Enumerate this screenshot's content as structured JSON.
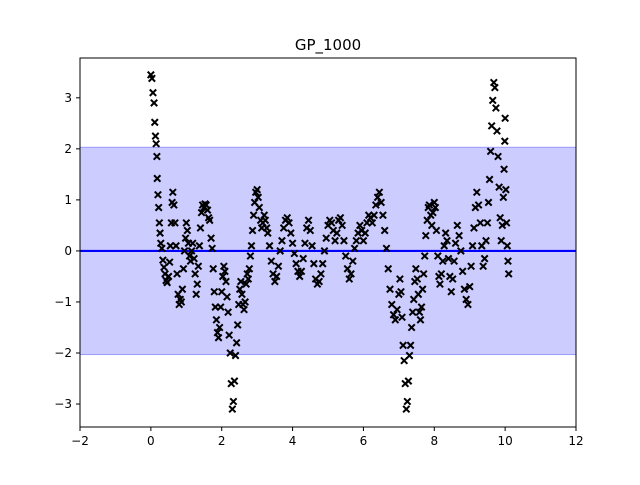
{
  "chart_data": {
    "type": "scatter",
    "title": "GP_1000",
    "xlabel": "",
    "ylabel": "",
    "xlim": [
      -2,
      12
    ],
    "ylim": [
      -3.45,
      3.78
    ],
    "x_ticks": [
      -2,
      0,
      2,
      4,
      6,
      8,
      10,
      12
    ],
    "y_ticks": [
      -3,
      -2,
      -1,
      0,
      1,
      2,
      3
    ],
    "grid": false,
    "legend": null,
    "mean_line": {
      "y": 0,
      "color": "#0000ff"
    },
    "confidence_band": {
      "y_low": -2.03,
      "y_high": 2.03,
      "color": "#ccccff"
    },
    "marker": "x",
    "marker_color": "#000000",
    "points": [
      [
        0.0,
        3.45
      ],
      [
        0.03,
        3.38
      ],
      [
        0.06,
        3.1
      ],
      [
        0.09,
        2.9
      ],
      [
        0.11,
        2.52
      ],
      [
        0.13,
        2.25
      ],
      [
        0.15,
        2.1
      ],
      [
        0.17,
        1.85
      ],
      [
        0.18,
        1.42
      ],
      [
        0.2,
        1.1
      ],
      [
        0.22,
        0.85
      ],
      [
        0.24,
        0.55
      ],
      [
        0.26,
        0.35
      ],
      [
        0.28,
        0.15
      ],
      [
        0.31,
        0.05
      ],
      [
        0.34,
        -0.18
      ],
      [
        0.37,
        -0.32
      ],
      [
        0.4,
        -0.45
      ],
      [
        0.43,
        -0.58
      ],
      [
        0.46,
        -0.62
      ],
      [
        0.5,
        -0.5
      ],
      [
        0.53,
        -0.22
      ],
      [
        0.55,
        0.1
      ],
      [
        0.58,
        0.55
      ],
      [
        0.6,
        0.95
      ],
      [
        0.62,
        1.15
      ],
      [
        0.65,
        0.9
      ],
      [
        0.68,
        0.55
      ],
      [
        0.71,
        0.1
      ],
      [
        0.74,
        -0.45
      ],
      [
        0.77,
        -0.85
      ],
      [
        0.8,
        -1.05
      ],
      [
        0.83,
        -0.95
      ],
      [
        0.86,
        -1.0
      ],
      [
        0.89,
        -0.75
      ],
      [
        0.92,
        -0.35
      ],
      [
        0.95,
        0.0
      ],
      [
        0.98,
        0.25
      ],
      [
        1.0,
        0.55
      ],
      [
        1.03,
        0.4
      ],
      [
        1.06,
        0.15
      ],
      [
        1.09,
        -0.1
      ],
      [
        1.12,
        -0.2
      ],
      [
        1.15,
        0.0
      ],
      [
        1.18,
        0.15
      ],
      [
        1.22,
        -0.15
      ],
      [
        1.25,
        -0.45
      ],
      [
        1.28,
        -0.85
      ],
      [
        1.31,
        -0.65
      ],
      [
        1.34,
        -0.3
      ],
      [
        1.37,
        0.1
      ],
      [
        1.4,
        0.45
      ],
      [
        1.43,
        0.75
      ],
      [
        1.46,
        0.9
      ],
      [
        1.5,
        0.85
      ],
      [
        1.53,
        0.92
      ],
      [
        1.56,
        0.9
      ],
      [
        1.6,
        0.8
      ],
      [
        1.63,
        0.65
      ],
      [
        1.66,
        0.6
      ],
      [
        1.7,
        0.25
      ],
      [
        1.73,
        0.05
      ],
      [
        1.76,
        -0.35
      ],
      [
        1.79,
        -0.8
      ],
      [
        1.82,
        -1.1
      ],
      [
        1.85,
        -1.35
      ],
      [
        1.88,
        -1.6
      ],
      [
        1.91,
        -1.7
      ],
      [
        1.94,
        -1.5
      ],
      [
        1.97,
        -1.1
      ],
      [
        2.0,
        -0.8
      ],
      [
        2.03,
        -0.5
      ],
      [
        2.06,
        -0.3
      ],
      [
        2.09,
        -0.4
      ],
      [
        2.12,
        -0.6
      ],
      [
        2.15,
        -0.9
      ],
      [
        2.18,
        -1.2
      ],
      [
        2.21,
        -1.65
      ],
      [
        2.24,
        -2.0
      ],
      [
        2.27,
        -2.6
      ],
      [
        2.3,
        -3.1
      ],
      [
        2.33,
        -2.95
      ],
      [
        2.36,
        -2.55
      ],
      [
        2.39,
        -2.05
      ],
      [
        2.42,
        -1.8
      ],
      [
        2.45,
        -1.45
      ],
      [
        2.48,
        -1.05
      ],
      [
        2.51,
        -0.75
      ],
      [
        2.54,
        -0.6
      ],
      [
        2.57,
        -0.85
      ],
      [
        2.6,
        -1.05
      ],
      [
        2.63,
        -1.15
      ],
      [
        2.66,
        -1.0
      ],
      [
        2.69,
        -0.65
      ],
      [
        2.72,
        -0.45
      ],
      [
        2.75,
        -0.55
      ],
      [
        2.78,
        -0.35
      ],
      [
        2.81,
        -0.1
      ],
      [
        2.84,
        0.1
      ],
      [
        2.87,
        0.4
      ],
      [
        2.9,
        0.7
      ],
      [
        2.93,
        0.95
      ],
      [
        2.96,
        1.15
      ],
      [
        3.0,
        1.2
      ],
      [
        3.03,
        1.05
      ],
      [
        3.06,
        0.85
      ],
      [
        3.1,
        0.6
      ],
      [
        3.13,
        0.45
      ],
      [
        3.16,
        0.55
      ],
      [
        3.2,
        0.7
      ],
      [
        3.23,
        0.6
      ],
      [
        3.27,
        0.45
      ],
      [
        3.3,
        0.35
      ],
      [
        3.35,
        0.1
      ],
      [
        3.4,
        -0.2
      ],
      [
        3.45,
        -0.45
      ],
      [
        3.5,
        -0.6
      ],
      [
        3.55,
        -0.5
      ],
      [
        3.6,
        -0.3
      ],
      [
        3.65,
        0.0
      ],
      [
        3.7,
        0.2
      ],
      [
        3.75,
        0.45
      ],
      [
        3.8,
        0.6
      ],
      [
        3.85,
        0.65
      ],
      [
        3.9,
        0.55
      ],
      [
        3.95,
        0.35
      ],
      [
        4.0,
        0.15
      ],
      [
        4.05,
        -0.05
      ],
      [
        4.1,
        -0.25
      ],
      [
        4.15,
        -0.4
      ],
      [
        4.2,
        -0.5
      ],
      [
        4.25,
        -0.4
      ],
      [
        4.3,
        -0.15
      ],
      [
        4.35,
        0.15
      ],
      [
        4.4,
        0.45
      ],
      [
        4.45,
        0.6
      ],
      [
        4.5,
        0.4
      ],
      [
        4.55,
        0.1
      ],
      [
        4.6,
        -0.25
      ],
      [
        4.65,
        -0.55
      ],
      [
        4.7,
        -0.65
      ],
      [
        4.75,
        -0.6
      ],
      [
        4.8,
        -0.45
      ],
      [
        4.85,
        -0.25
      ],
      [
        4.9,
        0.0
      ],
      [
        4.95,
        0.25
      ],
      [
        5.0,
        0.5
      ],
      [
        5.05,
        0.6
      ],
      [
        5.1,
        0.55
      ],
      [
        5.15,
        0.4
      ],
      [
        5.2,
        0.2
      ],
      [
        5.25,
        0.35
      ],
      [
        5.3,
        0.6
      ],
      [
        5.35,
        0.65
      ],
      [
        5.4,
        0.5
      ],
      [
        5.45,
        0.2
      ],
      [
        5.5,
        -0.1
      ],
      [
        5.55,
        -0.35
      ],
      [
        5.6,
        -0.55
      ],
      [
        5.65,
        -0.45
      ],
      [
        5.7,
        -0.2
      ],
      [
        5.75,
        0.05
      ],
      [
        5.8,
        0.2
      ],
      [
        5.85,
        0.35
      ],
      [
        5.9,
        0.5
      ],
      [
        5.95,
        0.4
      ],
      [
        6.0,
        0.2
      ],
      [
        6.05,
        0.35
      ],
      [
        6.1,
        0.55
      ],
      [
        6.15,
        0.7
      ],
      [
        6.2,
        0.65
      ],
      [
        6.25,
        0.55
      ],
      [
        6.3,
        0.7
      ],
      [
        6.35,
        0.9
      ],
      [
        6.4,
        1.05
      ],
      [
        6.45,
        1.15
      ],
      [
        6.5,
        0.95
      ],
      [
        6.55,
        0.7
      ],
      [
        6.6,
        0.4
      ],
      [
        6.65,
        0.05
      ],
      [
        6.7,
        -0.35
      ],
      [
        6.75,
        -0.75
      ],
      [
        6.8,
        -1.05
      ],
      [
        6.85,
        -1.25
      ],
      [
        6.9,
        -1.35
      ],
      [
        6.95,
        -1.15
      ],
      [
        7.0,
        -0.85
      ],
      [
        7.03,
        -0.55
      ],
      [
        7.06,
        -0.8
      ],
      [
        7.09,
        -1.3
      ],
      [
        7.12,
        -1.85
      ],
      [
        7.15,
        -2.15
      ],
      [
        7.18,
        -2.6
      ],
      [
        7.21,
        -3.1
      ],
      [
        7.24,
        -2.95
      ],
      [
        7.27,
        -2.55
      ],
      [
        7.3,
        -2.05
      ],
      [
        7.33,
        -1.85
      ],
      [
        7.36,
        -1.5
      ],
      [
        7.39,
        -1.2
      ],
      [
        7.42,
        -0.95
      ],
      [
        7.45,
        -0.6
      ],
      [
        7.48,
        -0.35
      ],
      [
        7.52,
        -0.55
      ],
      [
        7.55,
        -0.85
      ],
      [
        7.58,
        -1.2
      ],
      [
        7.61,
        -1.35
      ],
      [
        7.64,
        -1.1
      ],
      [
        7.67,
        -0.75
      ],
      [
        7.7,
        -0.45
      ],
      [
        7.73,
        -0.1
      ],
      [
        7.76,
        0.3
      ],
      [
        7.8,
        0.6
      ],
      [
        7.83,
        0.85
      ],
      [
        7.86,
        0.9
      ],
      [
        7.9,
        0.7
      ],
      [
        7.93,
        0.5
      ],
      [
        7.96,
        0.75
      ],
      [
        8.0,
        0.95
      ],
      [
        8.03,
        0.85
      ],
      [
        8.06,
        0.4
      ],
      [
        8.1,
        -0.1
      ],
      [
        8.13,
        -0.5
      ],
      [
        8.16,
        -0.65
      ],
      [
        8.2,
        -0.45
      ],
      [
        8.24,
        -0.2
      ],
      [
        8.28,
        0.1
      ],
      [
        8.32,
        0.35
      ],
      [
        8.36,
        0.2
      ],
      [
        8.4,
        -0.15
      ],
      [
        8.44,
        -0.5
      ],
      [
        8.48,
        -0.8
      ],
      [
        8.52,
        -0.55
      ],
      [
        8.56,
        -0.2
      ],
      [
        8.6,
        0.15
      ],
      [
        8.65,
        0.5
      ],
      [
        8.7,
        0.3
      ],
      [
        8.75,
        0.0
      ],
      [
        8.8,
        -0.4
      ],
      [
        8.85,
        -0.75
      ],
      [
        8.9,
        -0.95
      ],
      [
        8.95,
        -1.05
      ],
      [
        9.0,
        -0.7
      ],
      [
        9.04,
        -0.3
      ],
      [
        9.08,
        0.1
      ],
      [
        9.12,
        0.45
      ],
      [
        9.16,
        0.85
      ],
      [
        9.2,
        1.15
      ],
      [
        9.25,
        0.9
      ],
      [
        9.3,
        0.55
      ],
      [
        9.34,
        0.1
      ],
      [
        9.38,
        -0.3
      ],
      [
        9.42,
        -0.15
      ],
      [
        9.46,
        0.2
      ],
      [
        9.5,
        0.55
      ],
      [
        9.53,
        0.95
      ],
      [
        9.56,
        1.4
      ],
      [
        9.59,
        1.95
      ],
      [
        9.62,
        2.45
      ],
      [
        9.65,
        2.95
      ],
      [
        9.68,
        3.3
      ],
      [
        9.71,
        3.2
      ],
      [
        9.74,
        2.8
      ],
      [
        9.77,
        2.35
      ],
      [
        9.8,
        1.85
      ],
      [
        9.83,
        1.25
      ],
      [
        9.86,
        0.65
      ],
      [
        9.89,
        0.2
      ],
      [
        9.92,
        0.5
      ],
      [
        9.95,
        1.05
      ],
      [
        9.97,
        1.6
      ],
      [
        9.99,
        2.15
      ],
      [
        10.0,
        2.6
      ],
      [
        10.02,
        1.2
      ],
      [
        10.04,
        0.55
      ],
      [
        10.06,
        0.1
      ],
      [
        10.08,
        -0.2
      ],
      [
        10.1,
        -0.45
      ]
    ]
  }
}
